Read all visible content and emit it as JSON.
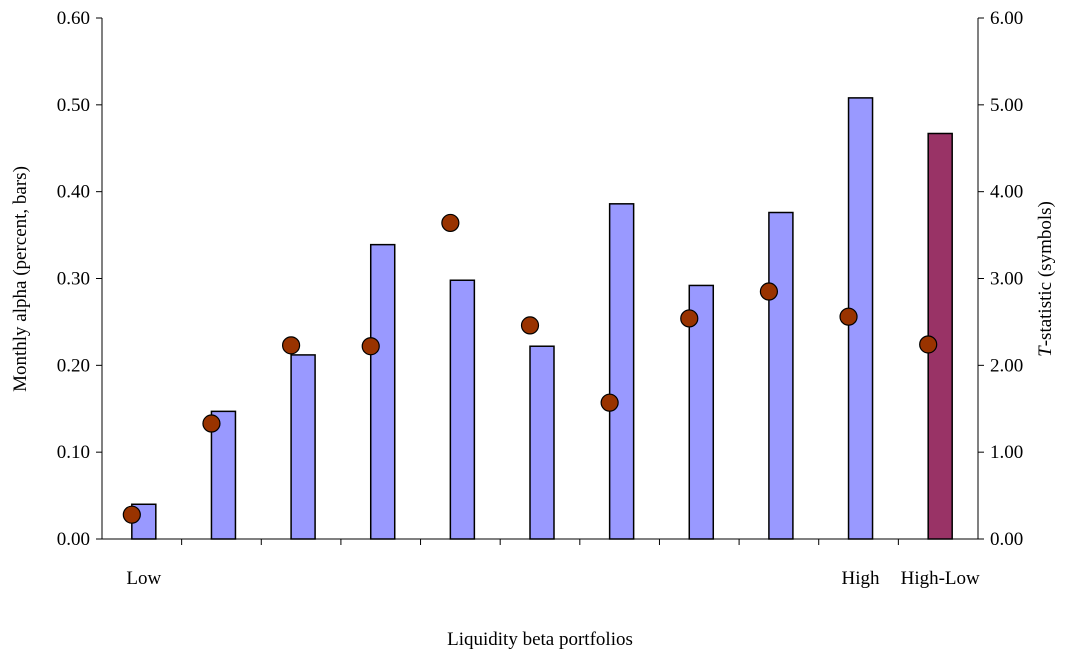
{
  "chart_data": {
    "type": "bar",
    "categories": [
      "Low",
      "",
      "",
      "",
      "",
      "",
      "",
      "",
      "",
      "High",
      "High-Low"
    ],
    "series": [
      {
        "axis": "left",
        "mark": "bar",
        "values": [
          0.04,
          0.147,
          0.212,
          0.339,
          0.298,
          0.222,
          0.386,
          0.292,
          0.376,
          0.508,
          0.467
        ],
        "colors": [
          "#9999ff",
          "#9999ff",
          "#9999ff",
          "#9999ff",
          "#9999ff",
          "#9999ff",
          "#9999ff",
          "#9999ff",
          "#9999ff",
          "#9999ff",
          "#993366"
        ]
      },
      {
        "axis": "right",
        "mark": "circle",
        "values": [
          0.28,
          1.33,
          2.23,
          2.22,
          3.64,
          2.46,
          1.57,
          2.54,
          2.85,
          2.56,
          2.24
        ],
        "color": "#993300"
      }
    ],
    "xlabel": "Liquidity beta portfolios",
    "ylabel": "Monthly alpha (percent, bars)",
    "y2label_italic": "T",
    "y2label_rest": "-statistic (symbols)",
    "ylim": [
      0,
      0.6
    ],
    "y2lim": [
      0,
      6
    ],
    "yticks": [
      "0.00",
      "0.10",
      "0.20",
      "0.30",
      "0.40",
      "0.50",
      "0.60"
    ],
    "y2ticks": [
      "0.00",
      "1.00",
      "2.00",
      "3.00",
      "4.00",
      "5.00",
      "6.00"
    ],
    "grid": false,
    "legend": "none"
  }
}
